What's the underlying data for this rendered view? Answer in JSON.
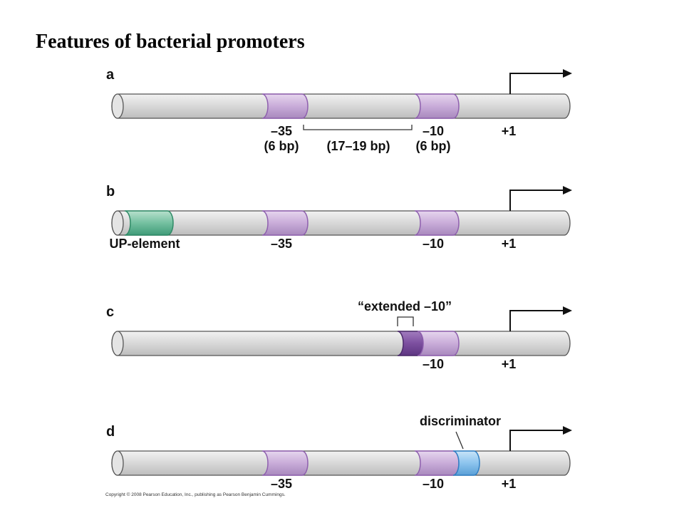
{
  "title": "Features of bacterial promoters",
  "panels": [
    {
      "letter": "a",
      "labels": [
        "–35",
        "(6 bp)",
        "(17–19 bp)",
        "–10",
        "(6 bp)",
        "+1"
      ]
    },
    {
      "letter": "b",
      "labels": [
        "UP-element",
        "–35",
        "–10",
        "+1"
      ]
    },
    {
      "letter": "c",
      "labels": [
        "“extended –10”",
        "–10",
        "+1"
      ]
    },
    {
      "letter": "d",
      "labels": [
        "discriminator",
        "–35",
        "–10",
        "+1"
      ]
    }
  ],
  "copyright": "Copyright © 2008 Pearson Education, Inc., publishing as Pearson Benjamin Cummings."
}
